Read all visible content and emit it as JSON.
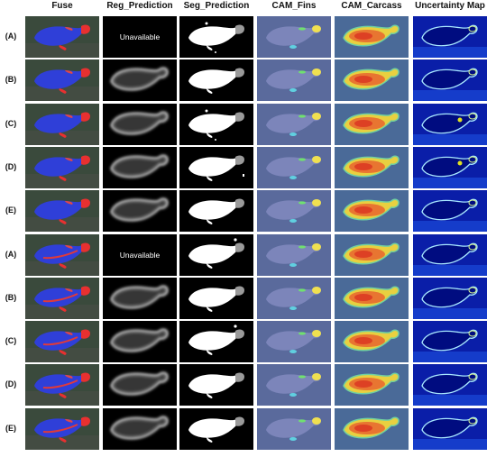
{
  "figure": {
    "columns": [
      {
        "key": "fuse",
        "label": "Fuse"
      },
      {
        "key": "reg",
        "label": "Reg_Prediction"
      },
      {
        "key": "seg",
        "label": "Seg_Prediction"
      },
      {
        "key": "cam_fins",
        "label": "CAM_Fins"
      },
      {
        "key": "cam_carcass",
        "label": "CAM_Carcass"
      },
      {
        "key": "uncert",
        "label": "Uncertainty Map"
      }
    ],
    "rows": [
      {
        "label": "(A)",
        "reg_unavailable": true
      },
      {
        "label": "(B)",
        "reg_unavailable": false
      },
      {
        "label": "(C)",
        "reg_unavailable": false
      },
      {
        "label": "(D)",
        "reg_unavailable": false
      },
      {
        "label": "(E)",
        "reg_unavailable": false
      },
      {
        "label": "(A)",
        "reg_unavailable": true
      },
      {
        "label": "(B)",
        "reg_unavailable": false
      },
      {
        "label": "(C)",
        "reg_unavailable": false
      },
      {
        "label": "(D)",
        "reg_unavailable": false
      },
      {
        "label": "(E)",
        "reg_unavailable": false
      }
    ],
    "unavailable_text": "Unavailable"
  }
}
